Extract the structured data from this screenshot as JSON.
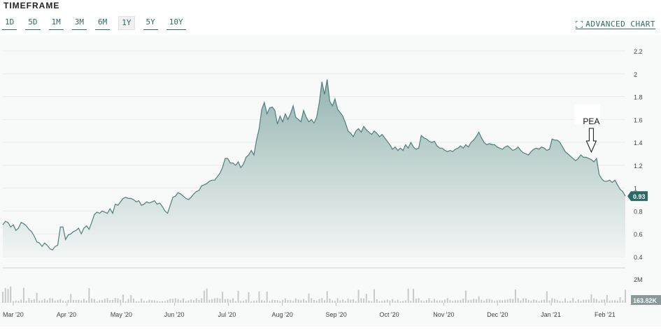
{
  "header": {
    "title": "TIMEFRAME",
    "buttons": [
      "1D",
      "5D",
      "1M",
      "3M",
      "6M",
      "1Y",
      "5Y",
      "10Y"
    ],
    "active": "1Y",
    "advanced_chart_label": "ADVANCED CHART"
  },
  "colors": {
    "accent": "#2b6b66",
    "line": "#4f7f7b",
    "fill_top": "#8fb1ad",
    "fill_bottom": "#f1f5f4",
    "volume": "#c9c9c9"
  },
  "chart_data": {
    "type": "area",
    "title": "",
    "xlabel": "",
    "ylabel": "",
    "ylim": [
      0.4,
      2.2
    ],
    "yticks": [
      "0.4",
      "0.6",
      "0.8",
      "1",
      "1.2",
      "1.4",
      "1.6",
      "1.8",
      "2",
      "2.2"
    ],
    "x_labels": [
      "Mar '20",
      "Apr '20",
      "May '20",
      "Jun '20",
      "Jul '20",
      "Aug '20",
      "Sep '20",
      "Oct '20",
      "Nov '20",
      "Dec '20",
      "Jan '21",
      "Feb '21"
    ],
    "last_price_label": "0.93",
    "last_price": 0.93,
    "volume_tick_label": "2M",
    "volume_last_label": "163.82K",
    "annotation": {
      "text": "PEA",
      "date_index": 0.945
    },
    "series": [
      {
        "values": [
          0.68,
          0.71,
          0.7,
          0.66,
          0.68,
          0.63,
          0.65,
          0.7,
          0.69,
          0.67,
          0.64,
          0.62,
          0.58,
          0.53,
          0.52,
          0.49,
          0.52,
          0.5,
          0.47,
          0.46,
          0.49,
          0.5,
          0.66,
          0.66,
          0.55,
          0.59,
          0.6,
          0.62,
          0.63,
          0.65,
          0.6,
          0.65,
          0.67,
          0.64,
          0.7,
          0.77,
          0.79,
          0.78,
          0.8,
          0.79,
          0.78,
          0.82,
          0.78,
          0.86,
          0.85,
          0.88,
          0.91,
          0.92,
          0.91,
          0.91,
          0.9,
          0.88,
          0.89,
          0.85,
          0.86,
          0.88,
          0.87,
          0.88,
          0.89,
          0.86,
          0.87,
          0.84,
          0.8,
          0.78,
          0.85,
          0.92,
          0.93,
          0.96,
          0.95,
          0.93,
          0.91,
          0.9,
          0.92,
          0.95,
          0.97,
          0.98,
          1.02,
          1.03,
          1.04,
          1.06,
          1.07,
          1.07,
          1.1,
          1.13,
          1.18,
          1.26,
          1.26,
          1.22,
          1.22,
          1.2,
          1.23,
          1.18,
          1.21,
          1.27,
          1.29,
          1.33,
          1.29,
          1.42,
          1.52,
          1.69,
          1.75,
          1.65,
          1.7,
          1.71,
          1.68,
          1.56,
          1.63,
          1.58,
          1.65,
          1.6,
          1.65,
          1.72,
          1.62,
          1.6,
          1.58,
          1.68,
          1.62,
          1.58,
          1.6,
          1.57,
          1.62,
          1.75,
          1.93,
          1.82,
          1.95,
          1.76,
          1.72,
          1.78,
          1.69,
          1.66,
          1.63,
          1.57,
          1.5,
          1.48,
          1.45,
          1.5,
          1.52,
          1.49,
          1.54,
          1.51,
          1.49,
          1.47,
          1.5,
          1.48,
          1.45,
          1.47,
          1.44,
          1.41,
          1.38,
          1.34,
          1.36,
          1.33,
          1.35,
          1.33,
          1.38,
          1.35,
          1.4,
          1.36,
          1.34,
          1.35,
          1.46,
          1.44,
          1.43,
          1.41,
          1.4,
          1.41,
          1.37,
          1.35,
          1.35,
          1.33,
          1.32,
          1.33,
          1.32,
          1.34,
          1.35,
          1.37,
          1.35,
          1.38,
          1.36,
          1.4,
          1.42,
          1.45,
          1.49,
          1.44,
          1.4,
          1.38,
          1.39,
          1.38,
          1.38,
          1.36,
          1.35,
          1.34,
          1.36,
          1.37,
          1.35,
          1.33,
          1.34,
          1.36,
          1.33,
          1.31,
          1.3,
          1.29,
          1.32,
          1.34,
          1.35,
          1.34,
          1.36,
          1.35,
          1.33,
          1.34,
          1.43,
          1.42,
          1.42,
          1.4,
          1.36,
          1.32,
          1.3,
          1.28,
          1.26,
          1.24,
          1.26,
          1.29,
          1.27,
          1.27,
          1.26,
          1.25,
          1.23,
          1.26,
          1.12,
          1.08,
          1.06,
          1.06,
          1.07,
          1.05,
          1.07,
          1.03,
          0.99,
          0.97,
          0.93
        ]
      }
    ]
  }
}
